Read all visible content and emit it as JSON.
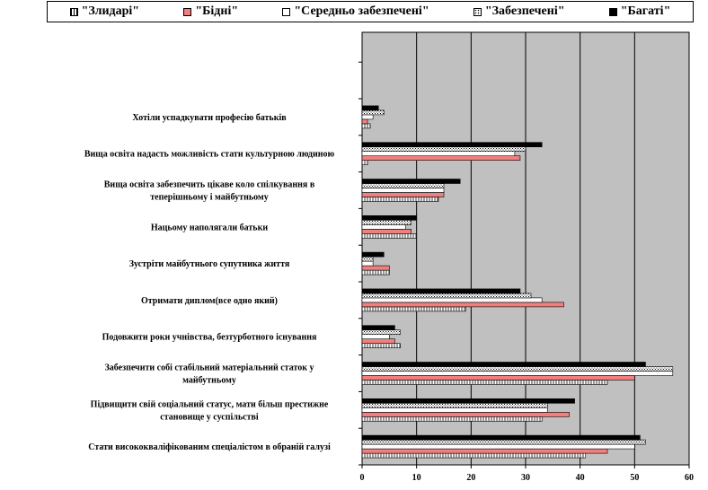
{
  "chart_data": {
    "type": "bar",
    "orientation": "horizontal",
    "title": "",
    "xlabel": "",
    "ylabel": "",
    "xlim": [
      0,
      60
    ],
    "x_ticks": [
      "0",
      "10",
      "20",
      "30",
      "40",
      "50",
      "60"
    ],
    "grid": true,
    "legend_position": "top",
    "plot_background": "#c0c0c0",
    "categories": [
      "Хотіли успадкувати професію батьків",
      "Вища освіта надасть можливість стати культурною людиною",
      "Вища освіта забезпечить цікаве коло спілкування в теперішньому і майбутньому",
      "Нацьому наполягали батьки",
      "Зустріти майбутнього супутника життя",
      "Отримати диплом(все одно який)",
      "Подовжити роки учнівства, безтурботного існування",
      "Забезпечити собі стабільний матеріальний статок у майбутньому",
      "Підвищити свій соціальний статус, мати більш престижне становище у суспільстві",
      "Стати висококваліфікованим спеціалістом в обраній галузі"
    ],
    "category_lines": [
      [
        "Хотіли успадкувати професію батьків"
      ],
      [
        "Вища освіта надасть можливість стати культурною людиною"
      ],
      [
        "Вища освіта забезпечить цікаве коло спілкування в",
        "теперішньому і майбутньому"
      ],
      [
        "Нацьому наполягали батьки"
      ],
      [
        "Зустріти майбутнього супутника життя"
      ],
      [
        "Отримати диплом(все одно який)"
      ],
      [
        "Подовжити роки учнівства, безтурботного існування"
      ],
      [
        "Забезпечити собі стабільний матеріальний статок у",
        "майбутньому"
      ],
      [
        "Підвищити свій соціальний статус, мати більш престижне",
        "становище у суспільстві"
      ],
      [
        "Стати висококваліфікованим спеціалістом в обраній галузі"
      ]
    ],
    "series": [
      {
        "name": "\"Злидарі\"",
        "fill": "vlines",
        "values": [
          1.5,
          1,
          14,
          10,
          5,
          19,
          7,
          45,
          33,
          41
        ]
      },
      {
        "name": "\"Бідні\"",
        "fill": "#f08080",
        "values": [
          1,
          29,
          15,
          9,
          5,
          37,
          6,
          50,
          38,
          45
        ]
      },
      {
        "name": "\"Середньо забезпечені\"",
        "fill": "#ffffff",
        "values": [
          2,
          28,
          15,
          8,
          2,
          33,
          5,
          57,
          34,
          50
        ]
      },
      {
        "name": "\"Забезпечені\"",
        "fill": "dots",
        "values": [
          4,
          30,
          15,
          9,
          2,
          31,
          7,
          57,
          34,
          52
        ]
      },
      {
        "name": "\"Багаті\"",
        "fill": "#000000",
        "values": [
          3,
          33,
          18,
          10,
          4,
          29,
          6,
          52,
          39,
          51
        ]
      }
    ]
  }
}
